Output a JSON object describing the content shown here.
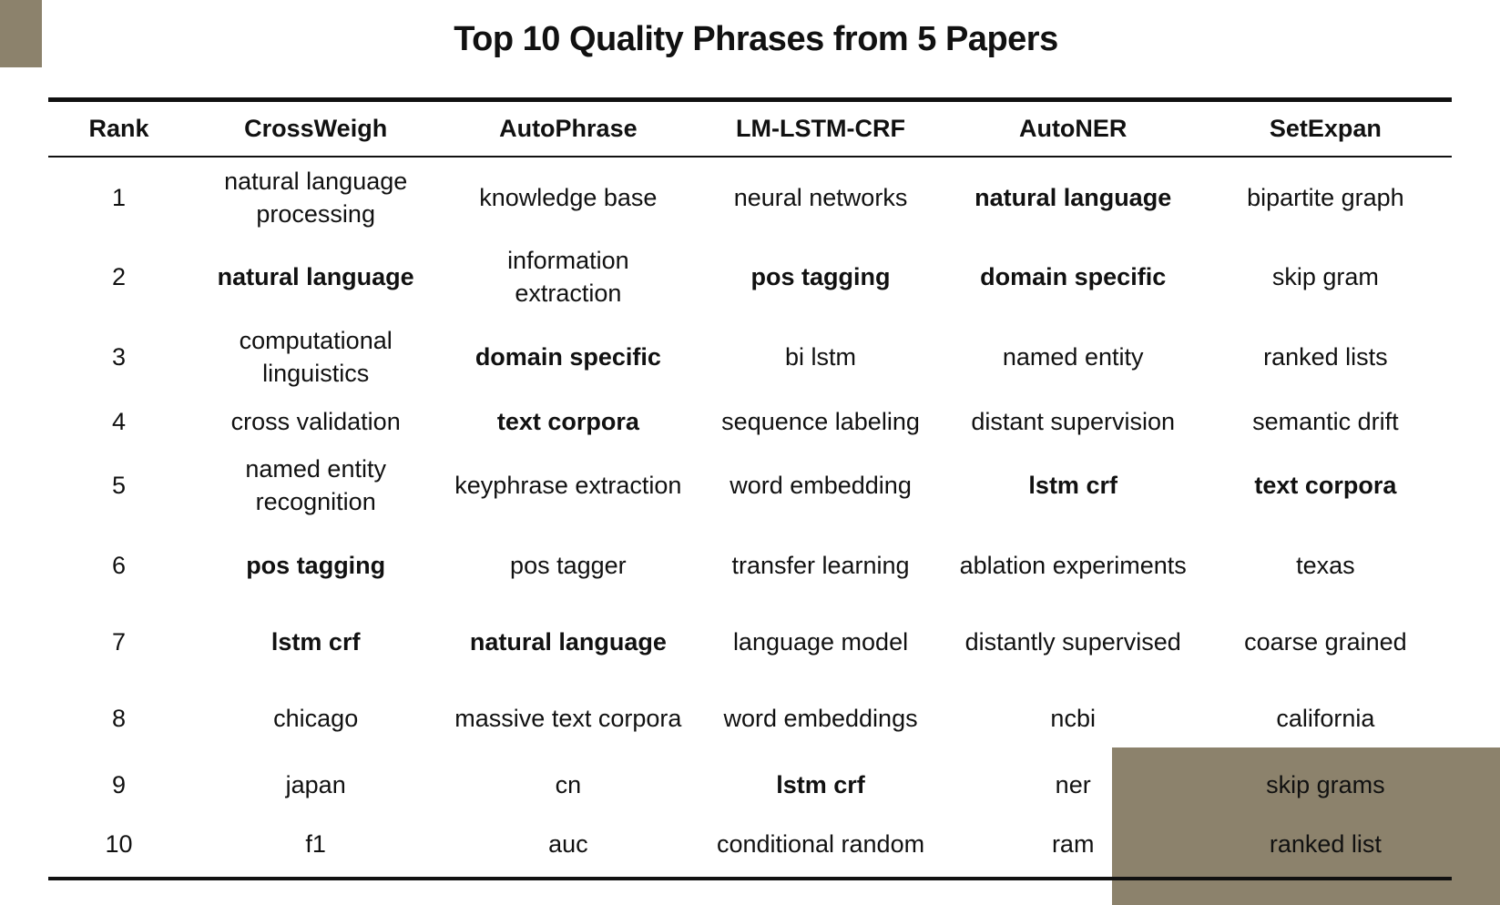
{
  "title": "Top 10 Quality Phrases from 5 Papers",
  "colors": {
    "brown": "#9a7b3e",
    "blue": "#2b4b8c",
    "gray": "#a3a3a3",
    "orange": "#ee9a3a",
    "black_bold": "#111111",
    "decor": "#8c826c"
  },
  "table": {
    "headers": [
      "Rank",
      "CrossWeigh",
      "AutoPhrase",
      "LM-LSTM-CRF",
      "AutoNER",
      "SetExpan"
    ],
    "rows": [
      [
        "1",
        "natural language processing",
        "knowledge base",
        "neural networks",
        "natural language",
        "bipartite graph"
      ],
      [
        "2",
        "natural language",
        "information extraction",
        "pos tagging",
        "domain specific",
        "skip gram"
      ],
      [
        "3",
        "computational linguistics",
        "domain specific",
        "bi lstm",
        "named entity",
        "ranked lists"
      ],
      [
        "4",
        "cross validation",
        "text corpora",
        "sequence labeling",
        "distant supervision",
        "semantic drift"
      ],
      [
        "5",
        "named entity recognition",
        "keyphrase extraction",
        "word embedding",
        "lstm crf",
        "text corpora"
      ],
      [
        "6",
        "pos tagging",
        "pos tagger",
        "transfer learning",
        "ablation experiments",
        "texas"
      ],
      [
        "7",
        "lstm crf",
        "natural language",
        "language model",
        "distantly supervised",
        "coarse grained"
      ],
      [
        "8",
        "chicago",
        "massive text corpora",
        "word embeddings",
        "ncbi",
        "california"
      ],
      [
        "9",
        "japan",
        "cn",
        "lstm crf",
        "ner",
        "skip grams"
      ],
      [
        "10",
        "f1",
        "auc",
        "conditional random",
        "ram",
        "ranked list"
      ]
    ]
  }
}
